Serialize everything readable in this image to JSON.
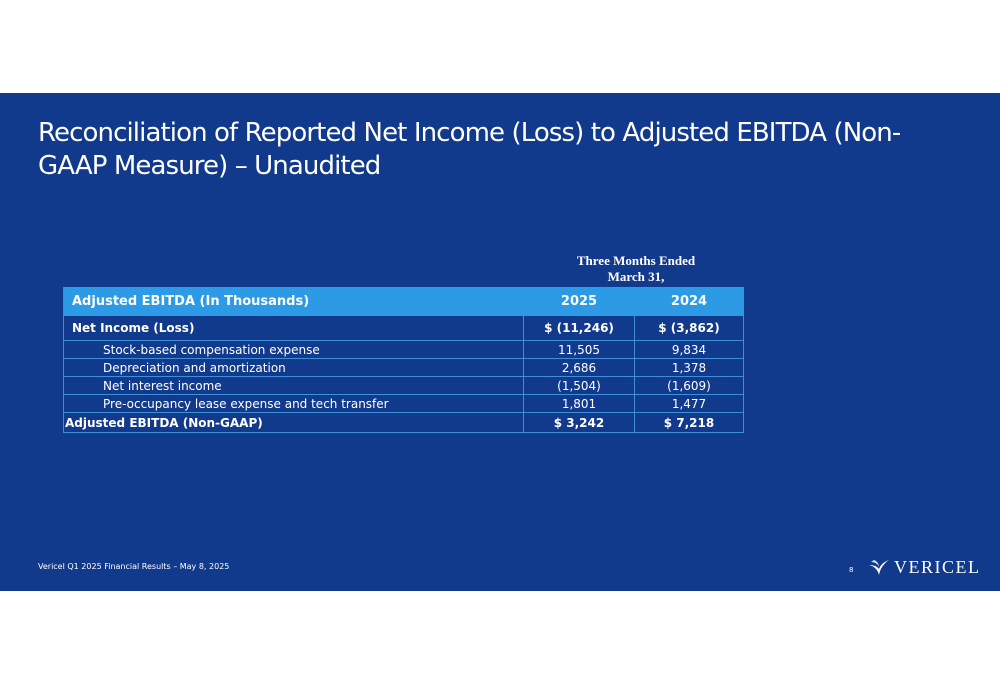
{
  "slide": {
    "title": "Reconciliation of Reported Net Income (Loss) to Adjusted EBITDA (Non-GAAP Measure) – Unaudited",
    "period_header": {
      "line1": "Three Months Ended",
      "line2": "March 31,"
    },
    "table": {
      "header": {
        "label": "Adjusted EBITDA (In Thousands)",
        "col_2025": "2025",
        "col_2024": "2024"
      },
      "net_income": {
        "label": "Net Income (Loss)",
        "v2025": "$ (11,246)",
        "v2024": "$ (3,862)"
      },
      "items": [
        {
          "label": "Stock-based compensation expense",
          "v2025": "11,505",
          "v2024": "9,834"
        },
        {
          "label": "Depreciation and amortization",
          "v2025": "2,686",
          "v2024": "1,378"
        },
        {
          "label": "Net interest income",
          "v2025": "(1,504)",
          "v2024": "(1,609)"
        },
        {
          "label": "Pre-occupancy lease expense and tech transfer",
          "v2025": "1,801",
          "v2024": "1,477"
        }
      ],
      "total": {
        "label": "Adjusted EBITDA (Non-GAAP)",
        "v2025": "$ 3,242",
        "v2024": "$ 7,218"
      }
    },
    "footer": {
      "text": "Vericel Q1 2025 Financial Results – May 8, 2025",
      "page_number": "8",
      "logo_text": "VERICEL",
      "logo_icon": "vericel-swoosh-icon"
    },
    "colors": {
      "background": "#123a8c",
      "header_fill": "#2d9ae6",
      "grid_lines": "#3f8fd6",
      "text": "#ffffff"
    }
  }
}
